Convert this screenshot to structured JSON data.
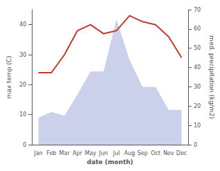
{
  "chart_data": {
    "type": "line",
    "xlabel": "date (month)",
    "ylabel": "max temp (C)",
    "y2label": "med. precipitation (kg/m2)",
    "categories": [
      "Jan",
      "Feb",
      "Mar",
      "Apr",
      "May",
      "Jun",
      "Jul",
      "Aug",
      "Sep",
      "Oct",
      "Nov",
      "Dec"
    ],
    "series": [
      {
        "type": "area",
        "axis": "y2",
        "color": "#b0b8e0",
        "values": [
          14,
          17,
          15,
          26,
          38,
          38,
          65,
          44,
          30,
          30,
          18,
          18
        ]
      },
      {
        "type": "line",
        "color": "#c0392b",
        "values": [
          24,
          24,
          30,
          38,
          40,
          37,
          38,
          43,
          41,
          40,
          36,
          29
        ]
      }
    ],
    "ylim": [
      0,
      45
    ],
    "yticks": [
      0,
      10,
      20,
      30,
      40
    ],
    "y2lim": [
      0,
      70
    ],
    "y2ticks": [
      0,
      10,
      20,
      30,
      40,
      50,
      60,
      70
    ],
    "grid": false
  }
}
